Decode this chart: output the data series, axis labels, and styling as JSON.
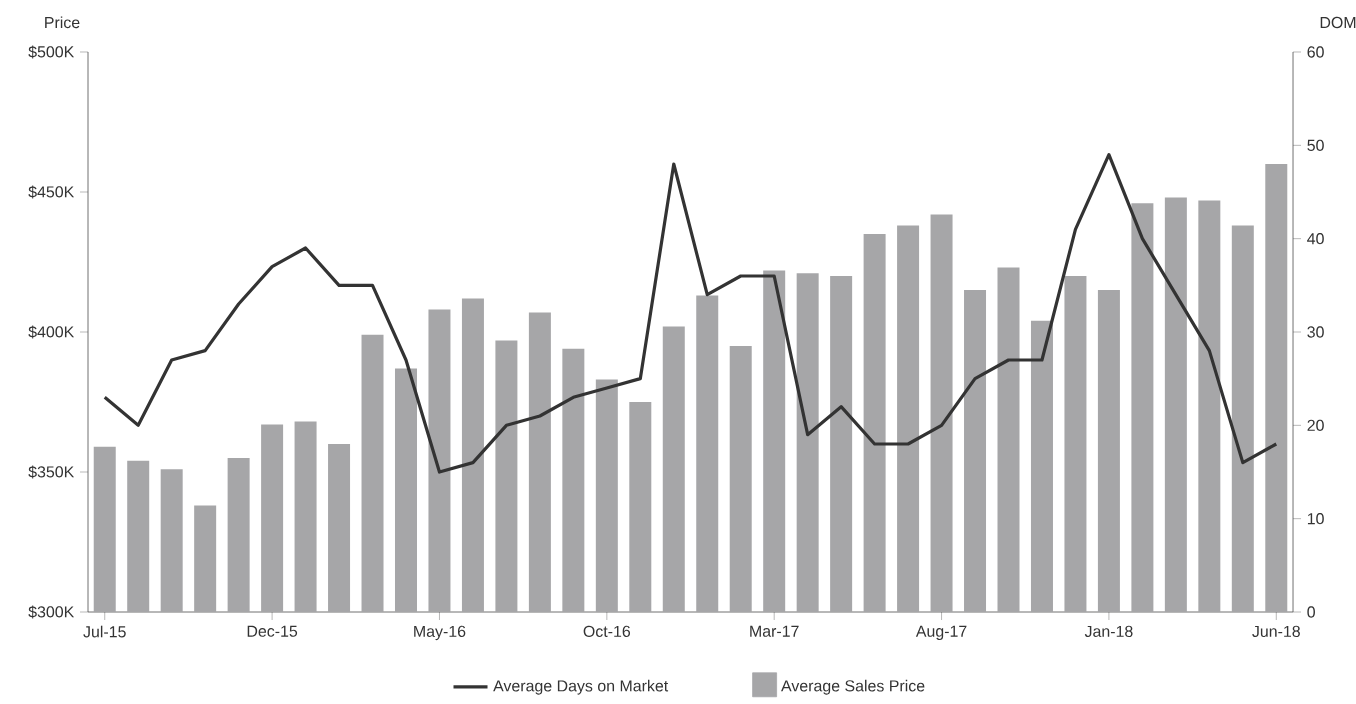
{
  "chart_data": {
    "type": "bar",
    "categories": [
      "Jul-15",
      null,
      null,
      null,
      null,
      "Dec-15",
      null,
      null,
      null,
      null,
      "May-16",
      null,
      null,
      null,
      null,
      "Oct-16",
      null,
      null,
      null,
      null,
      "Mar-17",
      null,
      null,
      null,
      null,
      "Aug-17",
      null,
      null,
      null,
      null,
      "Jan-18",
      null,
      null,
      null,
      null,
      "Jun-18"
    ],
    "series": [
      {
        "name": "Average Sales Price",
        "axis": "y",
        "color": "#a6a6a8",
        "values": [
          359,
          354,
          351,
          338,
          355,
          367,
          368,
          360,
          399,
          387,
          408,
          412,
          397,
          407,
          394,
          383,
          375,
          402,
          413,
          395,
          422,
          421,
          420,
          435,
          438,
          442,
          415,
          423,
          404,
          420,
          415,
          446,
          448,
          447,
          438,
          460
        ]
      },
      {
        "name": "Average Days on Market",
        "type": "line",
        "axis": "y2",
        "color": "#333333",
        "values": [
          23,
          20,
          27,
          28,
          33,
          37,
          39,
          35,
          35,
          27,
          15,
          16,
          20,
          21,
          23,
          24,
          25,
          48,
          34,
          36,
          36,
          19,
          22,
          18,
          18,
          20,
          25,
          27,
          27,
          41,
          49,
          40,
          34,
          28,
          16,
          18
        ]
      }
    ],
    "ylabel": "Price",
    "y2label": "DOM",
    "ylim": [
      300,
      500
    ],
    "yticks": [
      {
        "value": 300,
        "label": "$300K"
      },
      {
        "value": 350,
        "label": "$350K"
      },
      {
        "value": 400,
        "label": "$400K"
      },
      {
        "value": 450,
        "label": "$450K"
      },
      {
        "value": 500,
        "label": "$500K"
      }
    ],
    "y2lim": [
      0,
      60
    ],
    "y2ticks": [
      0,
      10,
      20,
      30,
      40,
      50,
      60
    ],
    "legend": "bottom"
  }
}
